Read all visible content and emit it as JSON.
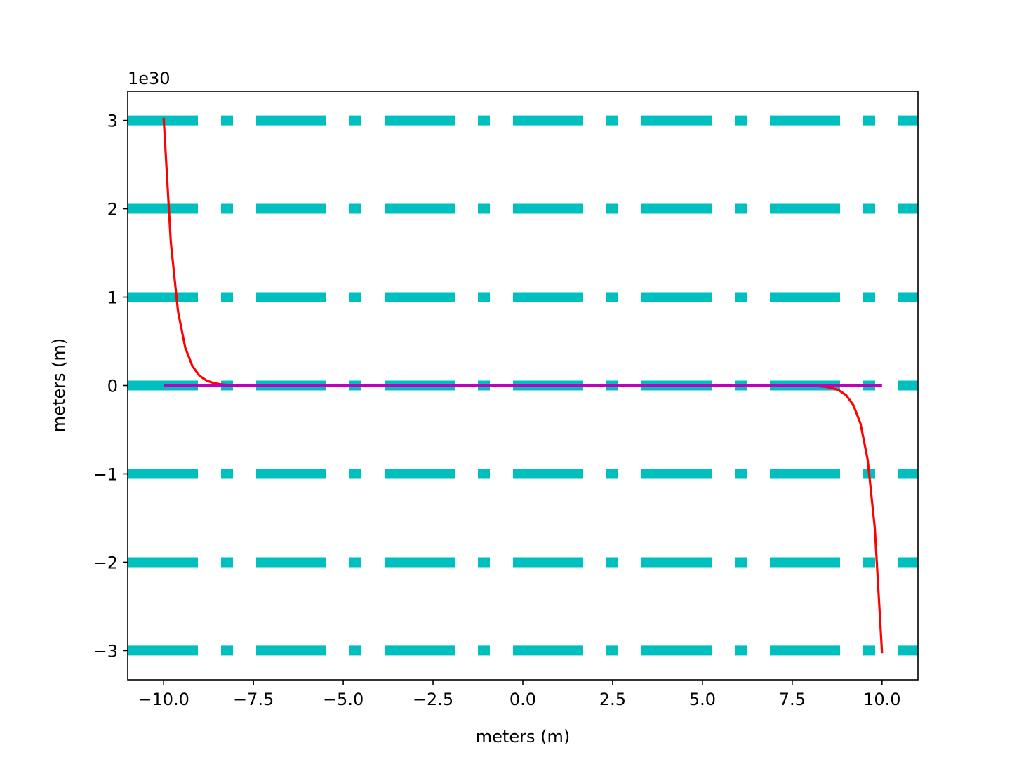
{
  "chart_data": {
    "type": "line",
    "xlabel": "meters (m)",
    "ylabel": "meters (m)",
    "y_offset_text": "1e30",
    "y_scale_multiplier": 1e+30,
    "xlim": [
      -11.0,
      11.0
    ],
    "ylim": [
      -3.33,
      3.33
    ],
    "x_ticks": [
      -10.0,
      -7.5,
      -5.0,
      -2.5,
      0.0,
      2.5,
      5.0,
      7.5,
      10.0
    ],
    "x_tick_labels": [
      "−10.0",
      "−7.5",
      "−5.0",
      "−2.5",
      "0.0",
      "2.5",
      "5.0",
      "7.5",
      "10.0"
    ],
    "y_ticks": [
      -3,
      -2,
      -1,
      0,
      1,
      2,
      3
    ],
    "y_tick_labels": [
      "−3",
      "−2",
      "−1",
      "0",
      "1",
      "2",
      "3"
    ],
    "grid": true,
    "grid_style": "dash-dot",
    "grid_color": "#00bfbf",
    "series": [
      {
        "color": "#ff0000",
        "x": [
          -10.0,
          -9.8,
          -9.6,
          -9.4,
          -9.2,
          -9.0,
          -8.8,
          -8.6,
          -8.4,
          -8.2,
          -8.0,
          -6.0,
          -4.0,
          -2.0,
          0.0,
          2.0,
          4.0,
          6.0,
          8.0,
          8.2,
          8.4,
          8.6,
          8.8,
          9.0,
          9.2,
          9.4,
          9.6,
          9.8,
          10.0
        ],
        "y": [
          3.03,
          1.62,
          0.84,
          0.43,
          0.22,
          0.11,
          0.055,
          0.027,
          0.013,
          0.006,
          0.003,
          0.0,
          0.0,
          0.0,
          0.0,
          0.0,
          0.0,
          0.0,
          -0.003,
          -0.006,
          -0.013,
          -0.027,
          -0.055,
          -0.11,
          -0.22,
          -0.43,
          -0.84,
          -1.62,
          -3.03
        ]
      },
      {
        "color": "#bf00bf",
        "x": [
          -10.0,
          10.0
        ],
        "y": [
          0.0,
          0.0
        ]
      }
    ]
  }
}
